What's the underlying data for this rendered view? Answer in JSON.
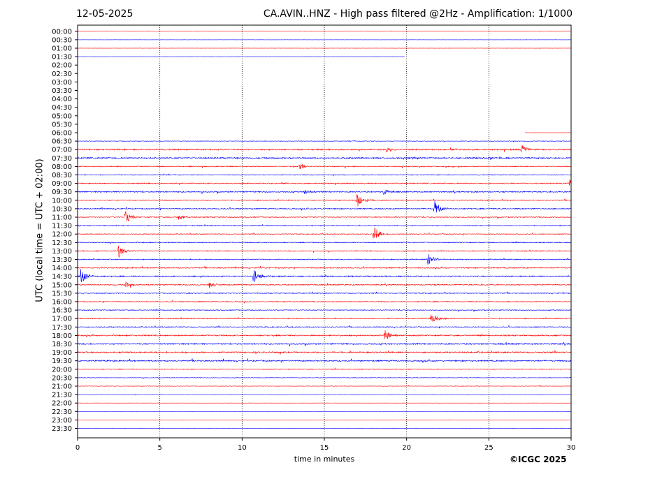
{
  "header": {
    "date": "12-05-2025",
    "title": "CA.AVIN..HNZ - High pass filtered @2Hz - Amplification: 1/1000"
  },
  "footer": {
    "copyright": "©ICGC 2025"
  },
  "chart_data": {
    "type": "line",
    "title": "CA.AVIN..HNZ - High pass filtered @2Hz - Amplification: 1/1000",
    "xlabel": "time in minutes",
    "ylabel": "UTC (local time = UTC + 02:00)",
    "xlim": [
      0,
      30
    ],
    "xticks": [
      0,
      5,
      10,
      15,
      20,
      25,
      30
    ],
    "vertical_gridlines_at": [
      5,
      10,
      15,
      20,
      25
    ],
    "row_labels": [
      "00:00",
      "00:30",
      "01:00",
      "01:30",
      "02:00",
      "02:30",
      "03:00",
      "03:30",
      "04:00",
      "04:30",
      "05:00",
      "05:30",
      "06:00",
      "06:30",
      "07:00",
      "07:30",
      "08:00",
      "08:30",
      "09:00",
      "09:30",
      "10:00",
      "10:30",
      "11:00",
      "11:30",
      "12:00",
      "12:30",
      "13:00",
      "13:30",
      "14:00",
      "14:30",
      "15:00",
      "15:30",
      "16:00",
      "16:30",
      "17:00",
      "17:30",
      "18:00",
      "18:30",
      "19:00",
      "19:30",
      "20:00",
      "20:30",
      "21:00",
      "21:30",
      "22:00",
      "22:30",
      "23:00",
      "23:30"
    ],
    "colors": {
      "even_rows": "#ff0000",
      "odd_rows": "#0000ff",
      "grid": "#000000"
    },
    "traces": [
      {
        "row": "00:00",
        "start": 0,
        "end": 30,
        "noise": 0.1
      },
      {
        "row": "00:30",
        "start": 0,
        "end": 30,
        "noise": 0.1
      },
      {
        "row": "01:00",
        "start": 0,
        "end": 30,
        "noise": 0.12
      },
      {
        "row": "01:30",
        "start": 0,
        "end": 19.9,
        "noise": 0.12
      },
      {
        "row": "06:00",
        "start": 27.2,
        "end": 30,
        "noise": 0.1
      },
      {
        "row": "06:30",
        "start": 0,
        "end": 30,
        "noise": 0.35
      },
      {
        "row": "07:00",
        "start": 0,
        "end": 30,
        "noise": 0.9
      },
      {
        "row": "07:30",
        "start": 0,
        "end": 30,
        "noise": 1.0
      },
      {
        "row": "08:00",
        "start": 0,
        "end": 30,
        "noise": 0.6
      },
      {
        "row": "08:30",
        "start": 0,
        "end": 30,
        "noise": 0.5
      },
      {
        "row": "09:00",
        "start": 0,
        "end": 30,
        "noise": 0.7
      },
      {
        "row": "09:30",
        "start": 0,
        "end": 30,
        "noise": 0.8
      },
      {
        "row": "10:00",
        "start": 0,
        "end": 30,
        "noise": 0.6
      },
      {
        "row": "10:30",
        "start": 0,
        "end": 30,
        "noise": 0.7
      },
      {
        "row": "11:00",
        "start": 0,
        "end": 30,
        "noise": 0.6
      },
      {
        "row": "11:30",
        "start": 0,
        "end": 30,
        "noise": 0.6
      },
      {
        "row": "12:00",
        "start": 0,
        "end": 30,
        "noise": 0.5
      },
      {
        "row": "12:30",
        "start": 0,
        "end": 30,
        "noise": 0.6
      },
      {
        "row": "13:00",
        "start": 0,
        "end": 30,
        "noise": 0.6
      },
      {
        "row": "13:30",
        "start": 0,
        "end": 30,
        "noise": 0.6
      },
      {
        "row": "14:00",
        "start": 0,
        "end": 30,
        "noise": 0.7
      },
      {
        "row": "14:30",
        "start": 0,
        "end": 30,
        "noise": 0.8
      },
      {
        "row": "15:00",
        "start": 0,
        "end": 30,
        "noise": 0.7
      },
      {
        "row": "15:30",
        "start": 0,
        "end": 30,
        "noise": 0.6
      },
      {
        "row": "16:00",
        "start": 0,
        "end": 30,
        "noise": 0.6
      },
      {
        "row": "16:30",
        "start": 0,
        "end": 30,
        "noise": 0.5
      },
      {
        "row": "17:00",
        "start": 0,
        "end": 30,
        "noise": 0.6
      },
      {
        "row": "17:30",
        "start": 0,
        "end": 30,
        "noise": 0.6
      },
      {
        "row": "18:00",
        "start": 0,
        "end": 30,
        "noise": 0.8
      },
      {
        "row": "18:30",
        "start": 0,
        "end": 30,
        "noise": 0.9
      },
      {
        "row": "19:00",
        "start": 0,
        "end": 30,
        "noise": 0.9
      },
      {
        "row": "19:30",
        "start": 0,
        "end": 30,
        "noise": 0.9
      },
      {
        "row": "20:00",
        "start": 0,
        "end": 30,
        "noise": 0.5
      },
      {
        "row": "20:30",
        "start": 0,
        "end": 30,
        "noise": 0.35
      },
      {
        "row": "21:00",
        "start": 0,
        "end": 30,
        "noise": 0.3
      },
      {
        "row": "21:30",
        "start": 0,
        "end": 30,
        "noise": 0.2
      },
      {
        "row": "22:00",
        "start": 0,
        "end": 30,
        "noise": 0.12
      },
      {
        "row": "22:30",
        "start": 0,
        "end": 30,
        "noise": 0.12
      },
      {
        "row": "23:00",
        "start": 0,
        "end": 30,
        "noise": 0.1
      },
      {
        "row": "23:30",
        "start": 0,
        "end": 30,
        "noise": 0.1
      }
    ],
    "events": [
      {
        "row": "07:00",
        "minute": 27.0,
        "amp": 1.8
      },
      {
        "row": "07:00",
        "minute": 18.8,
        "amp": 1.0
      },
      {
        "row": "08:00",
        "minute": 13.5,
        "amp": 1.2
      },
      {
        "row": "09:00",
        "minute": 29.9,
        "amp": 1.4
      },
      {
        "row": "09:30",
        "minute": 13.8,
        "amp": 1.0
      },
      {
        "row": "09:30",
        "minute": 18.6,
        "amp": 1.3
      },
      {
        "row": "10:00",
        "minute": 17.0,
        "amp": 3.0
      },
      {
        "row": "10:30",
        "minute": 21.7,
        "amp": 3.0
      },
      {
        "row": "11:00",
        "minute": 2.9,
        "amp": 2.8
      },
      {
        "row": "11:00",
        "minute": 6.1,
        "amp": 1.2
      },
      {
        "row": "12:00",
        "minute": 18.0,
        "amp": 3.0
      },
      {
        "row": "13:00",
        "minute": 2.5,
        "amp": 2.6
      },
      {
        "row": "13:30",
        "minute": 21.3,
        "amp": 2.6
      },
      {
        "row": "14:30",
        "minute": 0.2,
        "amp": 3.0
      },
      {
        "row": "14:30",
        "minute": 10.7,
        "amp": 3.0
      },
      {
        "row": "15:00",
        "minute": 2.9,
        "amp": 1.4
      },
      {
        "row": "15:00",
        "minute": 8.0,
        "amp": 1.4
      },
      {
        "row": "17:00",
        "minute": 21.5,
        "amp": 2.2
      },
      {
        "row": "18:00",
        "minute": 18.7,
        "amp": 2.0
      }
    ]
  }
}
